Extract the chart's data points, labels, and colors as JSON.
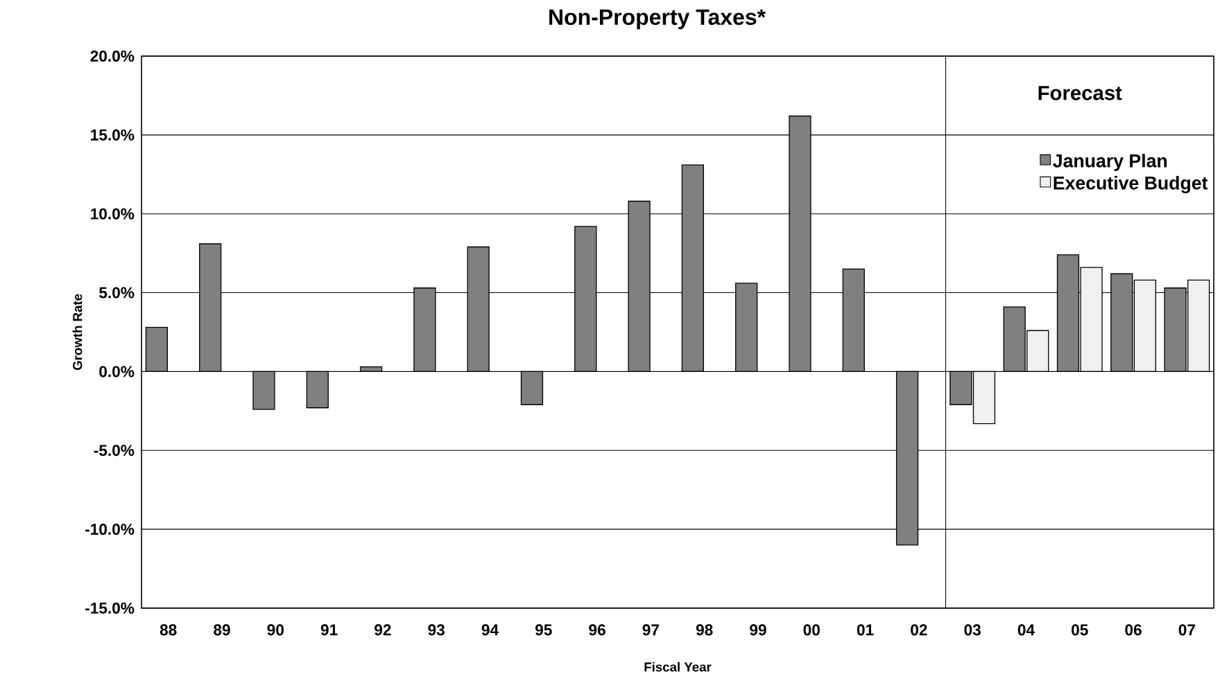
{
  "chart_data": {
    "type": "bar",
    "title": "Non-Property Taxes*",
    "xlabel": "Fiscal Year",
    "ylabel": "Growth Rate",
    "categories": [
      "88",
      "89",
      "90",
      "91",
      "92",
      "93",
      "94",
      "95",
      "96",
      "97",
      "98",
      "99",
      "00",
      "01",
      "02",
      "03",
      "04",
      "05",
      "06",
      "07"
    ],
    "series": [
      {
        "name": "January Plan",
        "color": "#808080",
        "values": [
          2.8,
          8.1,
          -2.4,
          -2.3,
          0.3,
          5.3,
          7.9,
          -2.1,
          9.2,
          10.8,
          13.1,
          5.6,
          16.2,
          6.5,
          -11.0,
          -2.1,
          4.1,
          7.4,
          6.2,
          5.3
        ]
      },
      {
        "name": "Executive Budget",
        "color": "#f0f0f0",
        "values": [
          null,
          null,
          null,
          null,
          null,
          null,
          null,
          null,
          null,
          null,
          null,
          null,
          null,
          null,
          null,
          -3.3,
          2.6,
          6.6,
          5.8,
          5.8
        ]
      }
    ],
    "ylim": [
      -15,
      20
    ],
    "yticks": [
      {
        "value": -15,
        "label": "-15.0%"
      },
      {
        "value": -10,
        "label": "-10.0%"
      },
      {
        "value": -5,
        "label": "-5.0%"
      },
      {
        "value": 0,
        "label": "0.0%"
      },
      {
        "value": 5,
        "label": "5.0%"
      },
      {
        "value": 10,
        "label": "10.0%"
      },
      {
        "value": 15,
        "label": "15.0%"
      },
      {
        "value": 20,
        "label": "20.0%"
      }
    ],
    "grid": "y",
    "legend": "top right",
    "annotations": [
      "Forecast"
    ]
  }
}
